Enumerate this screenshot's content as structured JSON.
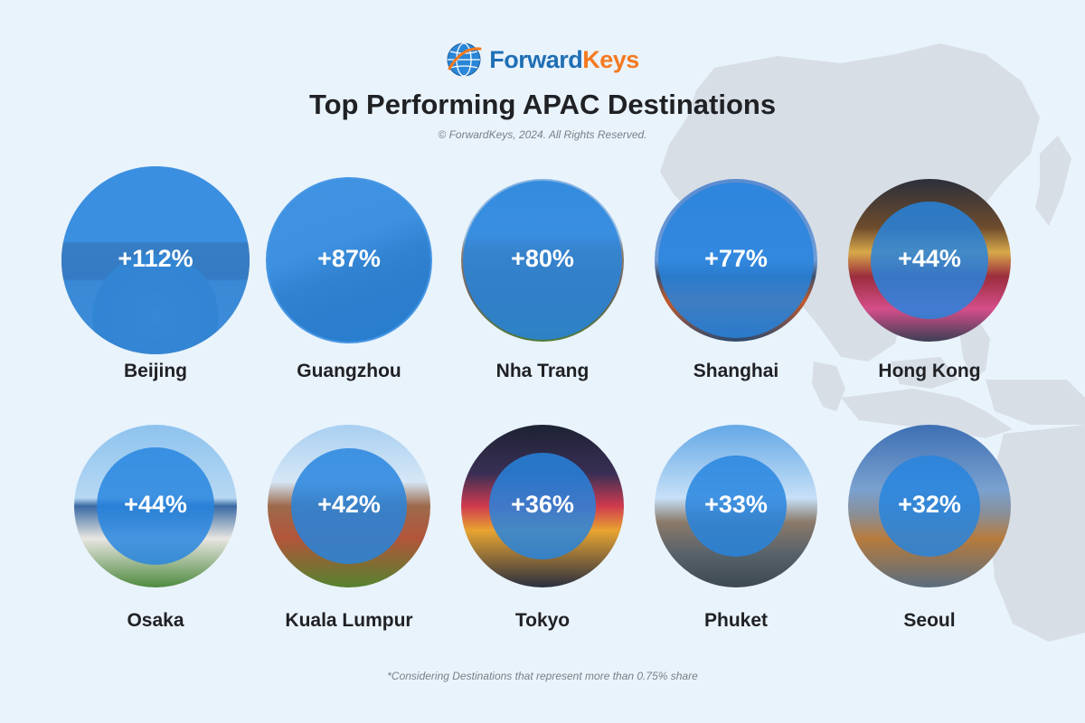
{
  "brand": {
    "name_part1": "Forward",
    "name_part2": "Keys",
    "color_primary": "#1f6fb5",
    "color_accent": "#f47a20",
    "icon": "globe-logo-icon"
  },
  "title": "Top Performing APAC Destinations",
  "copyright": "© ForwardKeys, 2024. All Rights Reserved.",
  "footnote": "*Considering Destinations that represent more than 0.75% share",
  "colors": {
    "background": "#e9f3fc",
    "bubble": "#2684df",
    "map": "#d6dde5"
  },
  "chart_data": {
    "type": "bubble",
    "categories": [
      "Beijing",
      "Guangzhou",
      "Nha Trang",
      "Shanghai",
      "Hong Kong",
      "Osaka",
      "Kuala Lumpur",
      "Tokyo",
      "Phuket",
      "Seoul"
    ],
    "values": [
      112,
      87,
      80,
      77,
      44,
      44,
      42,
      36,
      33,
      32
    ],
    "labels": [
      "+112%",
      "+87%",
      "+80%",
      "+77%",
      "+44%",
      "+44%",
      "+42%",
      "+36%",
      "+33%",
      "+32%"
    ],
    "unit": "%",
    "photos": [
      "forbidden-city",
      "river-bridge-skyline",
      "temple-tower",
      "city-skyline",
      "night-street-market",
      "castle",
      "hindu-temple",
      "neon-street",
      "temple-sky",
      "tower-skyline"
    ]
  }
}
